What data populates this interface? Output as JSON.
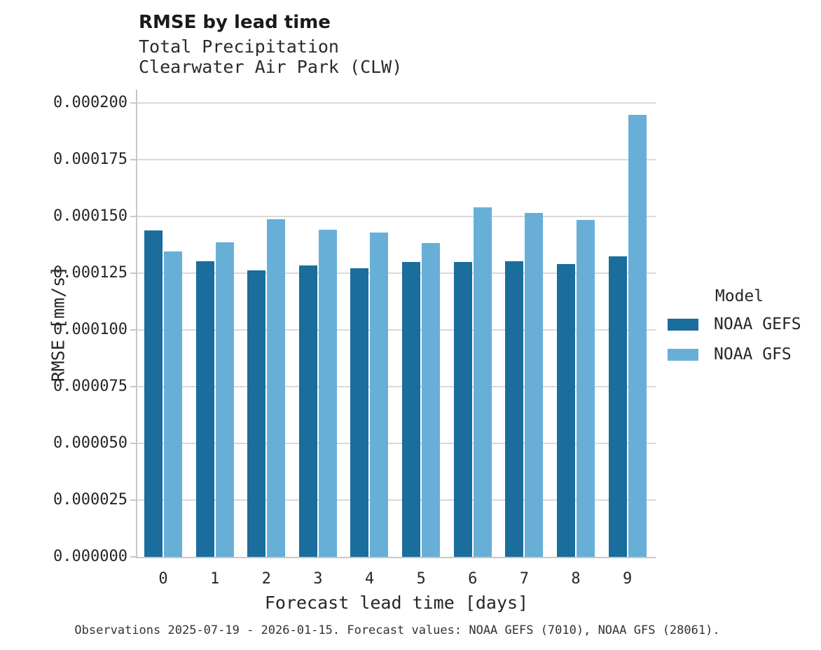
{
  "header": {
    "title": "RMSE by lead time",
    "subtitle_line1": "Total Precipitation",
    "subtitle_line2": "Clearwater Air Park (CLW)"
  },
  "chart_data": {
    "type": "bar",
    "title": "RMSE by lead time",
    "subtitle": [
      "Total Precipitation",
      "Clearwater Air Park (CLW)"
    ],
    "categories": [
      "0",
      "1",
      "2",
      "3",
      "4",
      "5",
      "6",
      "7",
      "8",
      "9"
    ],
    "series": [
      {
        "name": "NOAA GEFS",
        "color": "#1a6d9c",
        "values": [
          0.0001438,
          0.0001303,
          0.0001263,
          0.0001284,
          0.0001274,
          0.00013,
          0.00013,
          0.0001302,
          0.000129,
          0.0001325
        ]
      },
      {
        "name": "NOAA GFS",
        "color": "#68afd8",
        "values": [
          0.0001346,
          0.0001388,
          0.000149,
          0.0001442,
          0.000143,
          0.0001384,
          0.0001542,
          0.0001518,
          0.0001485,
          0.000195
        ]
      }
    ],
    "xlabel": "Forecast lead time [days]",
    "ylabel": "RMSE [mm/s]",
    "ylim": [
      0,
      0.000206
    ],
    "yticks": [
      0.0,
      2.5e-05,
      5e-05,
      7.5e-05,
      0.0001,
      0.000125,
      0.00015,
      0.000175,
      0.0002
    ],
    "ytick_decimals": 6,
    "grid": "horizontal",
    "gridline_color": "#d9d9d9",
    "spine_color": "#c8c8c8",
    "legend_title": "Model",
    "legend_position": "right"
  },
  "legend": {
    "title": "Model",
    "items": [
      {
        "label": "NOAA GEFS",
        "color": "#1a6d9c"
      },
      {
        "label": "NOAA GFS",
        "color": "#68afd8"
      }
    ]
  },
  "footer": {
    "caption": "Observations 2025-07-19 - 2026-01-15. Forecast values: NOAA GEFS (7010), NOAA GFS (28061)."
  }
}
